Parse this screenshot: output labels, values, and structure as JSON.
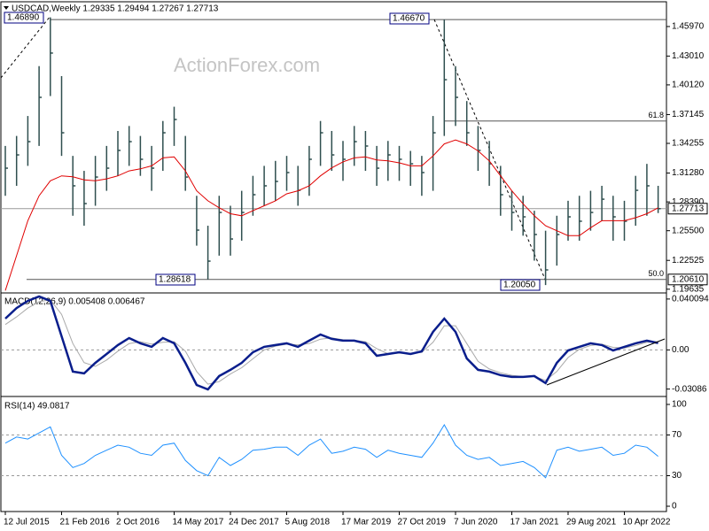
{
  "header": "USDCAD,Weekly 1.29335 1.29494 1.27267 1.27713",
  "watermark": "ActionForex.com",
  "chart_data": [
    {
      "type": "ohlc",
      "color": "#2f4f4f",
      "categories": [
        "12 Jul 2015",
        null,
        null,
        null,
        null,
        "21 Feb 2016",
        null,
        null,
        null,
        null,
        "2 Oct 2016",
        null,
        null,
        null,
        null,
        "14 May 2017",
        null,
        null,
        null,
        null,
        "24 Dec 2017",
        null,
        null,
        null,
        null,
        "5 Aug 2018",
        null,
        null,
        null,
        null,
        "17 Mar 2019",
        null,
        null,
        null,
        null,
        "27 Oct 2019",
        null,
        null,
        null,
        null,
        "7 Jun 2020",
        null,
        null,
        null,
        null,
        "17 Jan 2021",
        null,
        null,
        null,
        null,
        "29 Aug 2021",
        null,
        null,
        null,
        null,
        "10 Apr 2022",
        null,
        null,
        null
      ],
      "high": [
        1.34,
        1.35,
        1.37,
        1.42,
        1.4689,
        1.41,
        1.33,
        1.315,
        1.33,
        1.34,
        1.355,
        1.36,
        1.35,
        1.34,
        1.365,
        1.3793,
        1.35,
        1.29,
        1.26,
        1.29,
        1.28,
        1.295,
        1.31,
        1.32,
        1.325,
        1.33,
        1.32,
        1.34,
        1.365,
        1.355,
        1.345,
        1.36,
        1.355,
        1.34,
        1.345,
        1.34,
        1.335,
        1.33,
        1.37,
        1.4667,
        1.42,
        1.385,
        1.36,
        1.345,
        1.32,
        1.295,
        1.29,
        1.275,
        1.255,
        1.27,
        1.285,
        1.29,
        1.295,
        1.3,
        1.29,
        1.285,
        1.31,
        1.322,
        1.3
      ],
      "low": [
        1.29,
        1.3,
        1.32,
        1.34,
        1.39,
        1.33,
        1.27,
        1.26,
        1.28,
        1.295,
        1.31,
        1.32,
        1.31,
        1.295,
        1.315,
        1.34,
        1.295,
        1.24,
        1.2062,
        1.23,
        1.23,
        1.245,
        1.27,
        1.28,
        1.285,
        1.295,
        1.28,
        1.29,
        1.32,
        1.315,
        1.305,
        1.32,
        1.315,
        1.3,
        1.305,
        1.305,
        1.3,
        1.29,
        1.295,
        1.35,
        1.36,
        1.34,
        1.315,
        1.3,
        1.27,
        1.255,
        1.25,
        1.225,
        1.2005,
        1.22,
        1.245,
        1.245,
        1.255,
        1.265,
        1.245,
        1.245,
        1.26,
        1.27,
        1.2727
      ],
      "close": [
        1.3177,
        1.331,
        1.3443,
        1.3887,
        1.4331,
        1.3532,
        1.3,
        1.2822,
        1.3088,
        1.3177,
        1.3355,
        1.3443,
        1.3266,
        1.3177,
        1.3532,
        1.3665,
        1.3088,
        1.2556,
        1.2245,
        1.2733,
        1.2467,
        1.2733,
        1.2911,
        1.3,
        1.3044,
        1.3133,
        1.2955,
        1.3266,
        1.3532,
        1.331,
        1.3266,
        1.3443,
        1.3399,
        1.3177,
        1.331,
        1.3266,
        1.3221,
        1.3133,
        1.3532,
        1.4064,
        1.3887,
        1.3532,
        1.3355,
        1.3221,
        1.2911,
        1.2733,
        1.2689,
        1.2512,
        1.2157,
        1.2512,
        1.2689,
        1.2645,
        1.2733,
        1.2866,
        1.2689,
        1.2645,
        1.2955,
        1.3,
        1.2771
      ],
      "overlay_color": "#e00000",
      "overlay_values": [
        1.195,
        1.23,
        1.265,
        1.29,
        1.305,
        1.31,
        1.309,
        1.306,
        1.305,
        1.307,
        1.31,
        1.315,
        1.317,
        1.32,
        1.328,
        1.329,
        1.315,
        1.295,
        1.285,
        1.278,
        1.272,
        1.27,
        1.275,
        1.28,
        1.285,
        1.292,
        1.295,
        1.3,
        1.31,
        1.318,
        1.324,
        1.328,
        1.329,
        1.326,
        1.325,
        1.323,
        1.32,
        1.32,
        1.33,
        1.342,
        1.346,
        1.342,
        1.335,
        1.325,
        1.31,
        1.295,
        1.282,
        1.27,
        1.26,
        1.255,
        1.25,
        1.25,
        1.258,
        1.265,
        1.265,
        1.265,
        1.268,
        1.272,
        1.278
      ],
      "ylim": [
        1.1935,
        1.4792
      ],
      "yticks": [
        {
          "value": 1.4597,
          "label": "1.45970"
        },
        {
          "value": 1.4301,
          "label": "1.43010"
        },
        {
          "value": 1.4012,
          "label": "1.40120"
        },
        1.37145,
        1.34255,
        {
          "value": 1.3128,
          "label": "1.31280"
        },
        {
          "value": 1.2839,
          "label": "1.28390"
        },
        {
          "value": 1.255,
          "label": "1.25500"
        },
        1.22525,
        1.19635
      ],
      "last_price": {
        "value": 1.27713,
        "label": "1.27713"
      },
      "level_price": {
        "value": 1.2061,
        "label": "1.20610"
      },
      "annotations": [
        {
          "value": 1.4689,
          "label": "1.46890"
        },
        {
          "value": 1.4667,
          "label": "1.46670"
        },
        {
          "value": 1.28618,
          "label": "1.28618"
        },
        {
          "value": 1.2005,
          "label": "1.20050"
        }
      ],
      "fib_levels": [
        {
          "value": 1.365,
          "label": "61.8"
        },
        {
          "value": 1.2061,
          "label": "50.0"
        }
      ]
    },
    {
      "type": "macd",
      "title": "MACD(12,26,9) 0.005408 0.006467",
      "series": [
        {
          "color": "#0a1e8c",
          "values": [
            0.0247,
            0.033,
            0.0386,
            0.0421,
            0.0386,
            0.0107,
            -0.0171,
            -0.0185,
            -0.0102,
            -0.0032,
            0.0038,
            0.0093,
            0.0052,
            0.0024,
            0.0093,
            0.0052,
            -0.0102,
            -0.0276,
            -0.0311,
            -0.0206,
            -0.0157,
            -0.0102,
            -0.0018,
            0.0024,
            0.0038,
            0.0052,
            0.0024,
            0.0073,
            0.0121,
            0.0087,
            0.0073,
            0.0073,
            0.0052,
            -0.0046,
            -0.0032,
            -0.0018,
            -0.0032,
            -0.0011,
            0.0142,
            0.0247,
            0.0142,
            -0.0067,
            -0.0157,
            -0.0171,
            -0.0199,
            -0.0213,
            -0.0213,
            -0.0206,
            -0.0262,
            -0.0102,
            -0.0004,
            0.0024,
            0.0052,
            0.0038,
            -0.0004,
            0.0024,
            0.0052,
            0.0073,
            0.005408
          ]
        },
        {
          "color": "#a9a9a9",
          "values": [
            0.02,
            0.026,
            0.033,
            0.038,
            0.0395,
            0.028,
            0.005,
            -0.01,
            -0.013,
            -0.008,
            -0.001,
            0.005,
            0.0065,
            0.0045,
            0.006,
            0.0065,
            -0.001,
            -0.017,
            -0.027,
            -0.025,
            -0.019,
            -0.014,
            -0.007,
            0,
            0.003,
            0.0045,
            0.004,
            0.005,
            0.0085,
            0.0095,
            0.008,
            0.0075,
            0.0065,
            0.001,
            -0.003,
            -0.0025,
            -0.0028,
            -0.002,
            0.006,
            0.019,
            0.019,
            0.005,
            -0.009,
            -0.015,
            -0.018,
            -0.02,
            -0.021,
            -0.021,
            -0.024,
            -0.017,
            -0.006,
            0.0005,
            0.0035,
            0.0045,
            0.002,
            0.0015,
            0.0035,
            0.006,
            0.006467
          ]
        }
      ],
      "ylim": [
        -0.036,
        0.0435
      ],
      "yticks": [
        0.040094,
        {
          "value": 0,
          "label": "0.00"
        },
        -0.03086
      ]
    },
    {
      "type": "line",
      "title": "RSI(14) 49.0817",
      "color": "#1e90ff",
      "values": [
        62,
        68,
        66,
        72,
        78,
        50,
        38,
        42,
        50,
        55,
        60,
        58,
        52,
        50,
        60,
        62,
        45,
        35,
        30,
        48,
        40,
        46,
        55,
        56,
        58,
        58,
        50,
        60,
        66,
        52,
        54,
        58,
        56,
        48,
        55,
        52,
        50,
        48,
        62,
        80,
        60,
        50,
        46,
        48,
        40,
        42,
        44,
        38,
        28,
        55,
        58,
        54,
        56,
        58,
        50,
        52,
        60,
        58,
        49.0817
      ],
      "ylim": [
        -5.2,
        105.2
      ],
      "yticks": [
        100,
        70,
        30,
        0
      ],
      "grid": "dashed"
    }
  ]
}
